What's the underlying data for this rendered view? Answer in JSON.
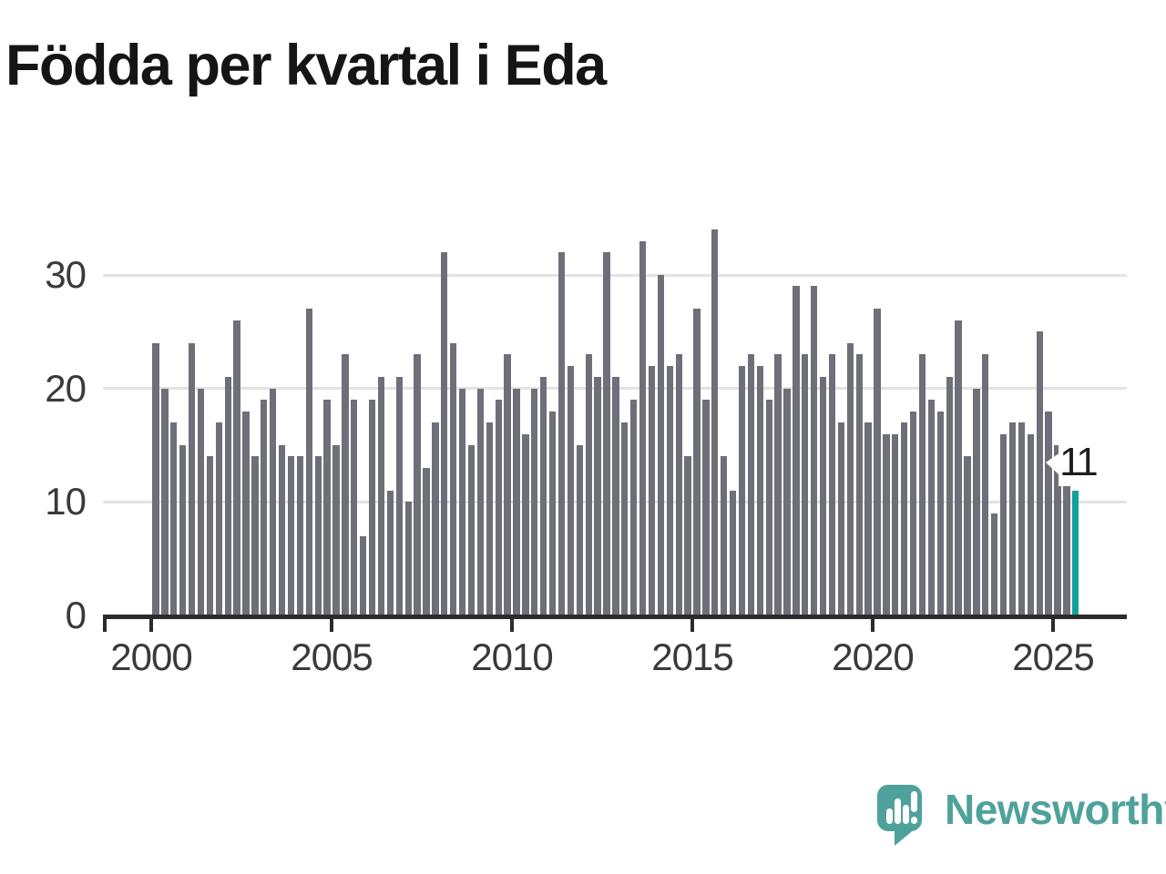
{
  "title": "Födda per kvartal i Eda",
  "annotation": {
    "label": "11"
  },
  "branding": {
    "name": "Newsworthy"
  },
  "colors": {
    "bar": "#6f6f79",
    "highlight": "#12a299",
    "logo_teal": "#4fa29c",
    "gridline": "#e3e3e3",
    "axis": "#2b2b2b",
    "tick_label": "#3a3a3a",
    "title_text": "#151515"
  },
  "chart_data": {
    "type": "bar",
    "title": "Födda per kvartal i Eda",
    "unit": "births per quarter",
    "x_start": {
      "year": 2000,
      "quarter": 1
    },
    "x_end": {
      "year": 2025,
      "quarter": 3
    },
    "values": [
      24,
      20,
      17,
      15,
      24,
      20,
      14,
      17,
      21,
      26,
      18,
      14,
      19,
      20,
      15,
      14,
      14,
      27,
      14,
      19,
      15,
      23,
      19,
      7,
      19,
      21,
      11,
      21,
      10,
      23,
      13,
      17,
      32,
      24,
      20,
      15,
      20,
      17,
      19,
      23,
      20,
      16,
      20,
      21,
      18,
      32,
      22,
      15,
      23,
      21,
      32,
      21,
      17,
      19,
      33,
      22,
      30,
      22,
      23,
      14,
      27,
      19,
      34,
      14,
      11,
      22,
      23,
      22,
      19,
      23,
      20,
      29,
      23,
      29,
      21,
      23,
      17,
      24,
      23,
      17,
      27,
      16,
      16,
      17,
      18,
      23,
      19,
      18,
      21,
      26,
      14,
      20,
      23,
      9,
      16,
      17,
      17,
      16,
      25,
      18,
      15,
      12,
      11
    ],
    "highlighted_index": 102,
    "highlighted_value_label": "11",
    "y_ticks": [
      0,
      10,
      20,
      30
    ],
    "x_tick_years": [
      2000,
      2005,
      2010,
      2015,
      2020,
      2025
    ],
    "ylim": [
      0,
      35
    ],
    "grid": "horizontal",
    "legend": "none"
  }
}
